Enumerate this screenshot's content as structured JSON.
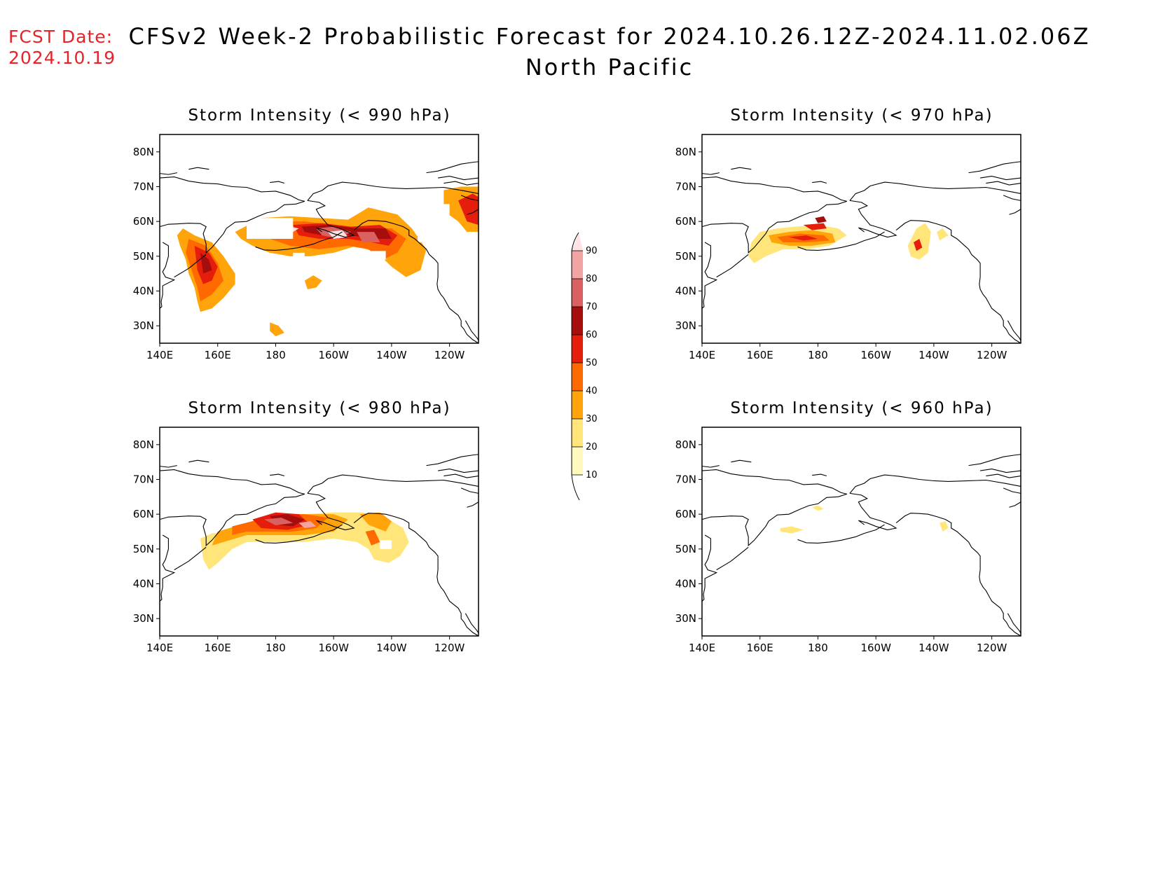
{
  "header": {
    "fcst_label": "FCST Date:",
    "fcst_date": "2024.10.19",
    "title_line1": "CFSv2 Week-2 Probabilistic Forecast for 2024.10.26.12Z-2024.11.02.06Z",
    "title_line2": "North Pacific"
  },
  "axes": {
    "lat_ticks": [
      "80N",
      "70N",
      "60N",
      "50N",
      "40N",
      "30N"
    ],
    "lon_ticks": [
      "140E",
      "160E",
      "180",
      "160W",
      "140W",
      "120W"
    ]
  },
  "colorbar": {
    "levels": [
      "10",
      "20",
      "30",
      "40",
      "50",
      "60",
      "70",
      "80",
      "90"
    ],
    "colors": [
      "#fff9bd",
      "#ffe57a",
      "#ffa40a",
      "#ff6a00",
      "#e51d0c",
      "#a60d0d",
      "#d96161",
      "#f2a3a3",
      "#fde3e3"
    ]
  },
  "panels": [
    {
      "title": "Storm Intensity (< 990 hPa)"
    },
    {
      "title": "Storm Intensity (< 970 hPa)"
    },
    {
      "title": "Storm Intensity (< 980 hPa)"
    },
    {
      "title": "Storm Intensity (< 960 hPa)"
    }
  ]
}
